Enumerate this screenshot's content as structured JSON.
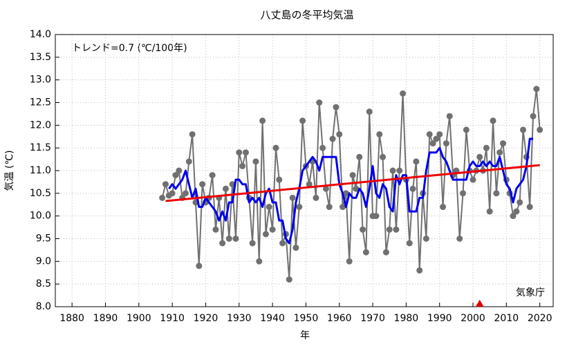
{
  "chart_data": {
    "type": "line",
    "title": "八丈島の冬平均気温",
    "y_label": "気温 (℃)",
    "x_label": "年",
    "annotations": [
      "トレンド=0.7 (℃/100年)",
      "気象庁"
    ],
    "xlim": [
      1875,
      2024
    ],
    "xticks": [
      1880,
      1890,
      1900,
      1910,
      1920,
      1930,
      1940,
      1950,
      1960,
      1970,
      1980,
      1990,
      2000,
      2010,
      2020
    ],
    "ylim": [
      8,
      14
    ],
    "yticks": [
      {
        "value": 8,
        "label": "8.0"
      },
      {
        "value": 8.5,
        "label": "8.5"
      },
      {
        "value": 9,
        "label": "9.0"
      },
      {
        "value": 9.5,
        "label": "9.5"
      },
      {
        "value": 10,
        "label": "10.0"
      },
      {
        "value": 10.5,
        "label": "10.5"
      },
      {
        "value": 11,
        "label": "11.0"
      },
      {
        "value": 11.5,
        "label": "11.5"
      },
      {
        "value": 12,
        "label": "12.0"
      },
      {
        "value": 12.5,
        "label": "12.5"
      },
      {
        "value": 13,
        "label": "13.0"
      },
      {
        "value": 13.5,
        "label": "13.5"
      },
      {
        "value": 14,
        "label": "14.0"
      }
    ],
    "grid": true,
    "series": [
      {
        "color": "#707070",
        "markers": true,
        "width": 2,
        "x": [
          1907,
          1908,
          1909,
          1910,
          1911,
          1912,
          1913,
          1914,
          1915,
          1916,
          1917,
          1918,
          1919,
          1920,
          1921,
          1922,
          1923,
          1924,
          1925,
          1926,
          1927,
          1928,
          1929,
          1930,
          1931,
          1932,
          1933,
          1934,
          1935,
          1936,
          1937,
          1938,
          1939,
          1940,
          1941,
          1942,
          1943,
          1944,
          1945,
          1946,
          1947,
          1948,
          1949,
          1950,
          1951,
          1952,
          1953,
          1954,
          1955,
          1956,
          1957,
          1958,
          1959,
          1960,
          1961,
          1962,
          1963,
          1964,
          1965,
          1966,
          1967,
          1968,
          1969,
          1970,
          1971,
          1972,
          1973,
          1974,
          1975,
          1976,
          1977,
          1978,
          1979,
          1980,
          1981,
          1982,
          1983,
          1984,
          1985,
          1986,
          1987,
          1988,
          1989,
          1990,
          1991,
          1992,
          1993,
          1994,
          1995,
          1996,
          1997,
          1998,
          1999,
          2000,
          2001,
          2002,
          2003,
          2004,
          2005,
          2006,
          2007,
          2008,
          2009,
          2010,
          2011,
          2012,
          2013,
          2014,
          2015,
          2016,
          2017,
          2018,
          2019,
          2020
        ],
        "values": [
          10.4,
          10.7,
          10.45,
          10.5,
          10.9,
          11.0,
          10.4,
          10.5,
          11.2,
          11.8,
          10.3,
          8.9,
          10.7,
          10.3,
          10.4,
          10.9,
          9.7,
          10.4,
          9.4,
          10.6,
          9.5,
          10.7,
          9.5,
          11.4,
          11.1,
          11.4,
          10.4,
          9.4,
          11.2,
          9.0,
          12.1,
          9.6,
          10.2,
          9.7,
          11.5,
          10.8,
          9.4,
          9.6,
          8.6,
          10.4,
          9.3,
          10.2,
          12.1,
          11.1,
          10.7,
          11.2,
          10.4,
          12.5,
          11.5,
          10.6,
          10.2,
          11.7,
          12.4,
          11.8,
          10.2,
          10.5,
          9.0,
          10.9,
          10.6,
          11.3,
          9.7,
          9.2,
          12.3,
          10.0,
          10.0,
          11.8,
          11.3,
          9.2,
          9.7,
          11.0,
          9.7,
          11.0,
          12.7,
          10.8,
          9.4,
          10.6,
          11.2,
          8.8,
          10.5,
          9.5,
          11.8,
          11.6,
          11.7,
          11.8,
          10.2,
          11.6,
          12.2,
          10.9,
          11.0,
          9.5,
          10.5,
          11.9,
          11.0,
          10.8,
          11.0,
          11.3,
          11.0,
          11.5,
          10.1,
          12.1,
          10.5,
          11.4,
          11.6,
          10.8,
          10.5,
          10.0,
          10.1,
          10.3,
          11.9,
          11.3,
          10.2,
          12.2,
          12.8,
          11.9
        ]
      },
      {
        "color": "#0000ee",
        "markers": false,
        "width": 3,
        "x": [
          1909,
          1910,
          1911,
          1912,
          1913,
          1914,
          1915,
          1916,
          1917,
          1918,
          1919,
          1920,
          1921,
          1922,
          1923,
          1924,
          1925,
          1926,
          1927,
          1928,
          1929,
          1930,
          1931,
          1932,
          1933,
          1934,
          1935,
          1936,
          1937,
          1938,
          1939,
          1940,
          1941,
          1942,
          1943,
          1944,
          1945,
          1946,
          1947,
          1948,
          1949,
          1950,
          1951,
          1952,
          1953,
          1954,
          1955,
          1956,
          1957,
          1958,
          1959,
          1960,
          1961,
          1962,
          1963,
          1964,
          1965,
          1966,
          1967,
          1968,
          1969,
          1970,
          1971,
          1972,
          1973,
          1974,
          1975,
          1976,
          1977,
          1978,
          1979,
          1980,
          1981,
          1982,
          1983,
          1984,
          1985,
          1986,
          1987,
          1988,
          1989,
          1990,
          1991,
          1992,
          1993,
          1994,
          1995,
          1996,
          1997,
          1998,
          1999,
          2000,
          2001,
          2002,
          2003,
          2004,
          2005,
          2006,
          2007,
          2008,
          2009,
          2010,
          2011,
          2012,
          2013,
          2014,
          2015,
          2016,
          2017,
          2018
        ],
        "values": [
          10.6,
          10.7,
          10.6,
          10.7,
          10.8,
          11.0,
          10.7,
          10.4,
          10.6,
          10.2,
          10.2,
          10.4,
          10.3,
          10.2,
          10.1,
          9.9,
          10.1,
          9.9,
          10.3,
          10.3,
          10.8,
          10.8,
          10.7,
          10.7,
          10.3,
          10.4,
          10.3,
          10.4,
          10.2,
          10.5,
          10.6,
          10.3,
          10.3,
          9.9,
          9.9,
          9.5,
          9.4,
          9.7,
          10.3,
          10.6,
          11.0,
          11.1,
          11.2,
          11.3,
          11.2,
          11.0,
          11.3,
          11.3,
          11.3,
          11.3,
          11.3,
          10.7,
          10.5,
          10.2,
          10.5,
          10.4,
          10.4,
          10.6,
          10.5,
          10.2,
          10.6,
          11.1,
          10.5,
          10.4,
          10.7,
          10.6,
          10.2,
          10.1,
          10.9,
          10.7,
          10.9,
          10.9,
          10.1,
          10.1,
          10.1,
          10.4,
          10.4,
          11.0,
          11.4,
          11.4,
          11.4,
          11.5,
          11.3,
          11.2,
          11.0,
          10.8,
          10.8,
          10.8,
          10.8,
          10.8,
          11.1,
          11.2,
          11.1,
          11.1,
          11.2,
          11.1,
          11.2,
          11.1,
          11.1,
          11.3,
          11.0,
          10.7,
          10.6,
          10.3,
          10.6,
          10.7,
          10.8,
          11.1,
          11.7,
          11.7
        ]
      },
      {
        "color": "#ee0000",
        "markers": false,
        "width": 3,
        "x": [
          1908,
          2020
        ],
        "values": [
          10.33,
          11.12
        ]
      }
    ],
    "relocation_marker": {
      "x": 2002,
      "color": "#dd0000"
    }
  }
}
